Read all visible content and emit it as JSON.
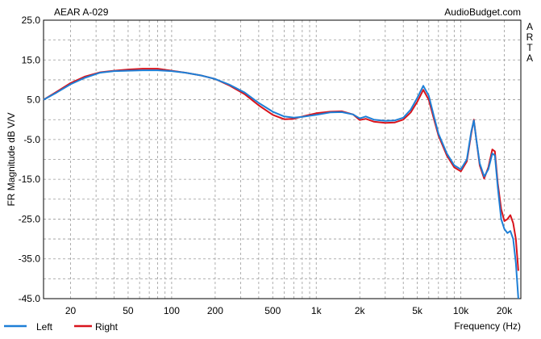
{
  "chart_data": {
    "type": "line",
    "title": "AEAR A-029",
    "watermark": "AudioBudget.com",
    "side_label": "ARTA",
    "xlabel": "Frequency (Hz)",
    "ylabel": "FR Magnitude dB V/V",
    "x_scale": "log",
    "xlim": [
      13,
      26000
    ],
    "ylim": [
      -45,
      25
    ],
    "x_ticks": [
      {
        "v": 20,
        "label": "20"
      },
      {
        "v": 50,
        "label": "50"
      },
      {
        "v": 100,
        "label": "100"
      },
      {
        "v": 200,
        "label": "200"
      },
      {
        "v": 500,
        "label": "500"
      },
      {
        "v": 1000,
        "label": "1k"
      },
      {
        "v": 2000,
        "label": "2k"
      },
      {
        "v": 5000,
        "label": "5k"
      },
      {
        "v": 10000,
        "label": "10k"
      },
      {
        "v": 20000,
        "label": "20k"
      }
    ],
    "y_ticks": [
      {
        "v": 25,
        "label": "25.0"
      },
      {
        "v": 15,
        "label": "15.0"
      },
      {
        "v": 5,
        "label": "5.0"
      },
      {
        "v": -5,
        "label": "-5.0"
      },
      {
        "v": -15,
        "label": "-15.0"
      },
      {
        "v": -25,
        "label": "-25.0"
      },
      {
        "v": -35,
        "label": "-35.0"
      },
      {
        "v": -45,
        "label": "-45.0"
      }
    ],
    "grid": true,
    "legend": "bottom-left",
    "colors": {
      "left": "#1e7fd6",
      "right": "#d8141c",
      "grid": "#9a9a9a"
    },
    "series": [
      {
        "name": "Left",
        "points": [
          [
            13,
            5.0
          ],
          [
            16,
            6.8
          ],
          [
            20,
            8.9
          ],
          [
            25,
            10.5
          ],
          [
            32,
            11.8
          ],
          [
            40,
            12.2
          ],
          [
            50,
            12.3
          ],
          [
            63,
            12.4
          ],
          [
            80,
            12.4
          ],
          [
            100,
            12.2
          ],
          [
            125,
            11.8
          ],
          [
            160,
            11.1
          ],
          [
            200,
            10.2
          ],
          [
            250,
            8.8
          ],
          [
            320,
            6.8
          ],
          [
            400,
            4.2
          ],
          [
            500,
            2.0
          ],
          [
            600,
            0.8
          ],
          [
            700,
            0.5
          ],
          [
            800,
            0.7
          ],
          [
            1000,
            1.2
          ],
          [
            1250,
            1.8
          ],
          [
            1500,
            1.9
          ],
          [
            1800,
            1.3
          ],
          [
            2000,
            0.3
          ],
          [
            2200,
            0.8
          ],
          [
            2500,
            0.0
          ],
          [
            3000,
            -0.3
          ],
          [
            3500,
            -0.2
          ],
          [
            4000,
            0.5
          ],
          [
            4500,
            2.5
          ],
          [
            5000,
            5.5
          ],
          [
            5500,
            8.5
          ],
          [
            6000,
            6.0
          ],
          [
            6500,
            1.0
          ],
          [
            7000,
            -3.5
          ],
          [
            8000,
            -8.5
          ],
          [
            9000,
            -11.5
          ],
          [
            10000,
            -12.5
          ],
          [
            11000,
            -10.0
          ],
          [
            11800,
            -3.0
          ],
          [
            12300,
            -0.2
          ],
          [
            12800,
            -5.0
          ],
          [
            13500,
            -11.0
          ],
          [
            14500,
            -14.3
          ],
          [
            15500,
            -12.5
          ],
          [
            16500,
            -8.5
          ],
          [
            17200,
            -9.0
          ],
          [
            18000,
            -17.0
          ],
          [
            19000,
            -25.0
          ],
          [
            20000,
            -27.5
          ],
          [
            21000,
            -28.5
          ],
          [
            22000,
            -28.0
          ],
          [
            23000,
            -30.0
          ],
          [
            24000,
            -36.0
          ],
          [
            25000,
            -45.0
          ]
        ]
      },
      {
        "name": "Right",
        "points": [
          [
            13,
            5.0
          ],
          [
            16,
            7.0
          ],
          [
            20,
            9.2
          ],
          [
            25,
            10.8
          ],
          [
            32,
            11.9
          ],
          [
            40,
            12.3
          ],
          [
            50,
            12.6
          ],
          [
            63,
            12.8
          ],
          [
            80,
            12.8
          ],
          [
            100,
            12.3
          ],
          [
            125,
            11.8
          ],
          [
            160,
            11.1
          ],
          [
            200,
            10.2
          ],
          [
            250,
            8.6
          ],
          [
            320,
            6.4
          ],
          [
            400,
            3.6
          ],
          [
            500,
            1.2
          ],
          [
            600,
            0.1
          ],
          [
            700,
            0.2
          ],
          [
            800,
            0.8
          ],
          [
            1000,
            1.6
          ],
          [
            1250,
            2.0
          ],
          [
            1500,
            2.1
          ],
          [
            1800,
            1.3
          ],
          [
            2000,
            -0.1
          ],
          [
            2200,
            0.2
          ],
          [
            2500,
            -0.5
          ],
          [
            3000,
            -0.8
          ],
          [
            3500,
            -0.7
          ],
          [
            4000,
            0.0
          ],
          [
            4500,
            1.8
          ],
          [
            5000,
            4.5
          ],
          [
            5500,
            7.5
          ],
          [
            6000,
            5.0
          ],
          [
            6500,
            0.3
          ],
          [
            7000,
            -4.0
          ],
          [
            8000,
            -9.0
          ],
          [
            9000,
            -12.0
          ],
          [
            10000,
            -13.0
          ],
          [
            11000,
            -10.5
          ],
          [
            11800,
            -3.5
          ],
          [
            12300,
            0.0
          ],
          [
            12800,
            -5.0
          ],
          [
            13500,
            -11.5
          ],
          [
            14500,
            -14.8
          ],
          [
            15500,
            -12.0
          ],
          [
            16500,
            -7.5
          ],
          [
            17200,
            -8.0
          ],
          [
            18000,
            -16.0
          ],
          [
            19000,
            -22.5
          ],
          [
            20000,
            -25.5
          ],
          [
            21000,
            -25.0
          ],
          [
            22000,
            -24.0
          ],
          [
            23000,
            -26.0
          ],
          [
            24000,
            -30.0
          ],
          [
            25000,
            -38.0
          ]
        ]
      }
    ]
  }
}
